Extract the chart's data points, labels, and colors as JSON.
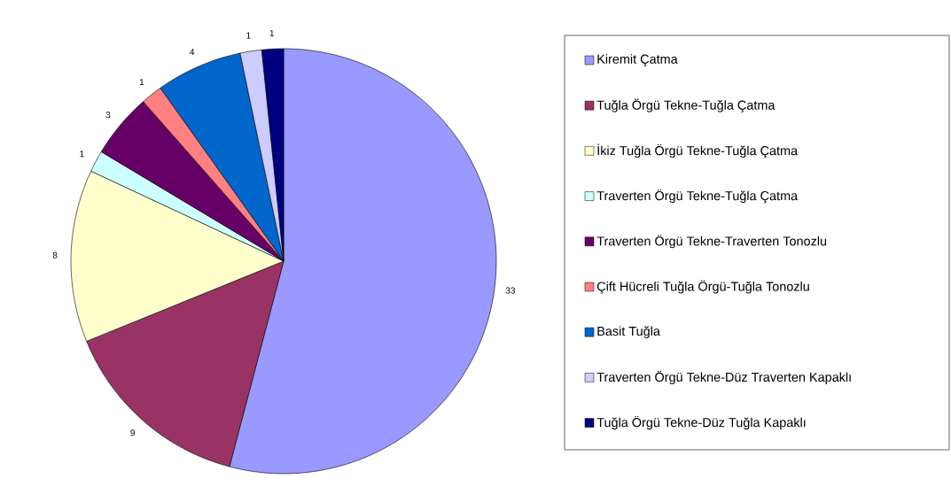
{
  "chart_data": {
    "type": "pie",
    "categories": [
      "Kiremit Çatma",
      "Tuğla Örgü Tekne-Tuğla Çatma",
      "İkiz Tuğla Örgü Tekne-Tuğla Çatma",
      "Traverten Örgü Tekne-Tuğla Çatma",
      "Traverten Örgü Tekne-Traverten Tonozlu",
      "Çift Hücreli Tuğla Örgü-Tuğla Tonozlu",
      "Basit Tuğla",
      "Traverten Örgü Tekne-Düz Traverten Kapaklı",
      "Tuğla Örgü Tekne-Düz Tuğla Kapaklı"
    ],
    "values": [
      33,
      9,
      8,
      1,
      3,
      1,
      4,
      1,
      1
    ],
    "colors": [
      "#9999ff",
      "#993366",
      "#ffffcc",
      "#ccffff",
      "#660066",
      "#ff8080",
      "#0066cc",
      "#ccccff",
      "#000080"
    ],
    "data_labels": true,
    "legend": "right"
  }
}
